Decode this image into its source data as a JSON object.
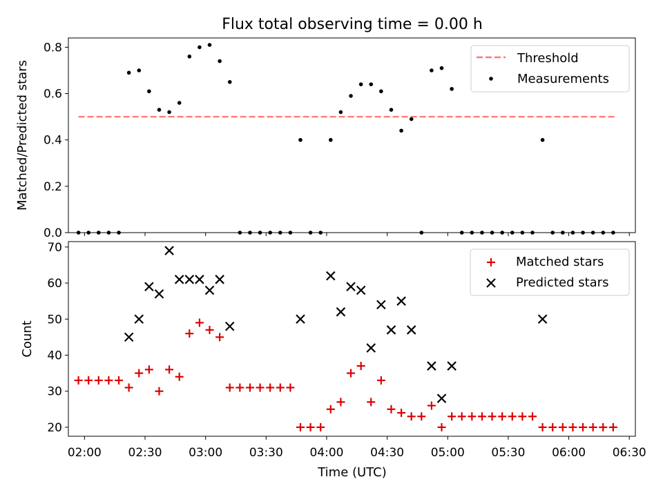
{
  "title": "Flux total observing time = 0.00 h",
  "colors": {
    "threshold": "#ff7777",
    "measurement": "#000000",
    "matched": "#dd0000",
    "predicted": "#000000"
  },
  "chart_data": [
    {
      "type": "scatter",
      "ylabel": "Matched/Predicted stars",
      "xlabel": "",
      "xlim": [
        "01:52",
        "06:33"
      ],
      "ylim": [
        0,
        0.84
      ],
      "yticks": [
        "0.0",
        "0.2",
        "0.4",
        "0.6",
        "0.8"
      ],
      "legend_position": "top-right",
      "threshold": {
        "name": "Threshold",
        "value": 0.5,
        "x_range": [
          "01:57",
          "06:23"
        ],
        "style": "dashed"
      },
      "series": [
        {
          "name": "Measurements",
          "points": [
            [
              "01:57",
              0
            ],
            [
              "02:02",
              0
            ],
            [
              "02:07",
              0
            ],
            [
              "02:12",
              0
            ],
            [
              "02:17",
              0
            ],
            [
              "02:22",
              0.69
            ],
            [
              "02:27",
              0.7
            ],
            [
              "02:32",
              0.61
            ],
            [
              "02:37",
              0.53
            ],
            [
              "02:42",
              0.52
            ],
            [
              "02:47",
              0.56
            ],
            [
              "02:52",
              0.76
            ],
            [
              "02:57",
              0.8
            ],
            [
              "03:02",
              0.81
            ],
            [
              "03:07",
              0.74
            ],
            [
              "03:12",
              0.65
            ],
            [
              "03:17",
              0
            ],
            [
              "03:22",
              0
            ],
            [
              "03:27",
              0
            ],
            [
              "03:32",
              0
            ],
            [
              "03:37",
              0
            ],
            [
              "03:42",
              0
            ],
            [
              "03:47",
              0.4
            ],
            [
              "03:52",
              0
            ],
            [
              "03:57",
              0
            ],
            [
              "04:02",
              0.4
            ],
            [
              "04:07",
              0.52
            ],
            [
              "04:12",
              0.59
            ],
            [
              "04:17",
              0.64
            ],
            [
              "04:22",
              0.64
            ],
            [
              "04:27",
              0.61
            ],
            [
              "04:32",
              0.53
            ],
            [
              "04:37",
              0.44
            ],
            [
              "04:42",
              0.49
            ],
            [
              "04:47",
              0
            ],
            [
              "04:52",
              0.7
            ],
            [
              "04:57",
              0.71
            ],
            [
              "05:02",
              0.62
            ],
            [
              "05:07",
              0
            ],
            [
              "05:12",
              0
            ],
            [
              "05:17",
              0
            ],
            [
              "05:22",
              0
            ],
            [
              "05:27",
              0
            ],
            [
              "05:32",
              0
            ],
            [
              "05:37",
              0
            ],
            [
              "05:42",
              0
            ],
            [
              "05:47",
              0.4
            ],
            [
              "05:52",
              0
            ],
            [
              "05:57",
              0
            ],
            [
              "06:02",
              0
            ],
            [
              "06:07",
              0
            ],
            [
              "06:12",
              0
            ],
            [
              "06:17",
              0
            ],
            [
              "06:22",
              0
            ]
          ]
        }
      ]
    },
    {
      "type": "scatter",
      "ylabel": "Count",
      "xlabel": "Time (UTC)",
      "xlim": [
        "01:52",
        "06:33"
      ],
      "ylim": [
        17.5,
        71.5
      ],
      "yticks": [
        "20",
        "30",
        "40",
        "50",
        "60",
        "70"
      ],
      "xticks": [
        "02:00",
        "02:30",
        "03:00",
        "03:30",
        "04:00",
        "04:30",
        "05:00",
        "05:30",
        "06:00",
        "06:30"
      ],
      "legend_position": "top-right",
      "series": [
        {
          "name": "Matched stars",
          "marker": "plus",
          "points": [
            [
              "01:57",
              33
            ],
            [
              "02:02",
              33
            ],
            [
              "02:07",
              33
            ],
            [
              "02:12",
              33
            ],
            [
              "02:17",
              33
            ],
            [
              "02:22",
              31
            ],
            [
              "02:27",
              35
            ],
            [
              "02:32",
              36
            ],
            [
              "02:37",
              30
            ],
            [
              "02:42",
              36
            ],
            [
              "02:47",
              34
            ],
            [
              "02:52",
              46
            ],
            [
              "02:57",
              49
            ],
            [
              "03:02",
              47
            ],
            [
              "03:07",
              45
            ],
            [
              "03:12",
              31
            ],
            [
              "03:17",
              31
            ],
            [
              "03:22",
              31
            ],
            [
              "03:27",
              31
            ],
            [
              "03:32",
              31
            ],
            [
              "03:37",
              31
            ],
            [
              "03:42",
              31
            ],
            [
              "03:47",
              20
            ],
            [
              "03:52",
              20
            ],
            [
              "03:57",
              20
            ],
            [
              "04:02",
              25
            ],
            [
              "04:07",
              27
            ],
            [
              "04:12",
              35
            ],
            [
              "04:17",
              37
            ],
            [
              "04:22",
              27
            ],
            [
              "04:27",
              33
            ],
            [
              "04:32",
              25
            ],
            [
              "04:37",
              24
            ],
            [
              "04:42",
              23
            ],
            [
              "04:47",
              23
            ],
            [
              "04:52",
              26
            ],
            [
              "04:57",
              20
            ],
            [
              "05:02",
              23
            ],
            [
              "05:07",
              23
            ],
            [
              "05:12",
              23
            ],
            [
              "05:17",
              23
            ],
            [
              "05:22",
              23
            ],
            [
              "05:27",
              23
            ],
            [
              "05:32",
              23
            ],
            [
              "05:37",
              23
            ],
            [
              "05:42",
              23
            ],
            [
              "05:47",
              20
            ],
            [
              "05:52",
              20
            ],
            [
              "05:57",
              20
            ],
            [
              "06:02",
              20
            ],
            [
              "06:07",
              20
            ],
            [
              "06:12",
              20
            ],
            [
              "06:17",
              20
            ],
            [
              "06:22",
              20
            ]
          ]
        },
        {
          "name": "Predicted stars",
          "marker": "x",
          "points": [
            [
              "02:22",
              45
            ],
            [
              "02:27",
              50
            ],
            [
              "02:32",
              59
            ],
            [
              "02:37",
              57
            ],
            [
              "02:42",
              69
            ],
            [
              "02:47",
              61
            ],
            [
              "02:52",
              61
            ],
            [
              "02:57",
              61
            ],
            [
              "03:02",
              58
            ],
            [
              "03:07",
              61
            ],
            [
              "03:12",
              48
            ],
            [
              "03:47",
              50
            ],
            [
              "04:02",
              62
            ],
            [
              "04:07",
              52
            ],
            [
              "04:12",
              59
            ],
            [
              "04:17",
              58
            ],
            [
              "04:22",
              42
            ],
            [
              "04:27",
              54
            ],
            [
              "04:32",
              47
            ],
            [
              "04:37",
              55
            ],
            [
              "04:42",
              47
            ],
            [
              "04:52",
              37
            ],
            [
              "04:57",
              28
            ],
            [
              "05:02",
              37
            ],
            [
              "05:47",
              50
            ]
          ]
        }
      ]
    }
  ]
}
